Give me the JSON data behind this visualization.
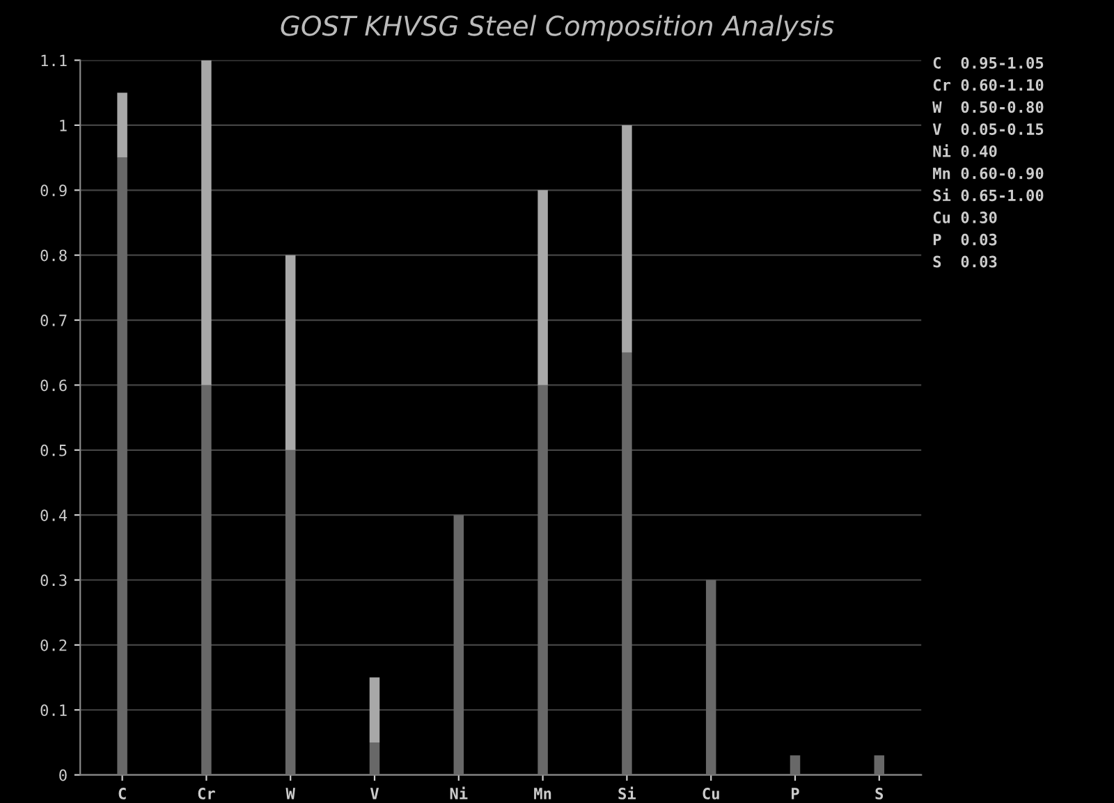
{
  "chart_data": {
    "type": "bar",
    "title": "GOST KHVSG Steel Composition Analysis",
    "stacked": true,
    "categories": [
      "C",
      "Cr",
      "W",
      "V",
      "Ni",
      "Mn",
      "Si",
      "Cu",
      "P",
      "S"
    ],
    "series": [
      {
        "color": "#686868",
        "values": [
          0.95,
          0.6,
          0.5,
          0.05,
          0.4,
          0.6,
          0.65,
          0.3,
          0.03,
          0.03
        ]
      },
      {
        "color": "#a8a8a8",
        "values": [
          0.1,
          0.5,
          0.3,
          0.1,
          0,
          0.3,
          0.35,
          0,
          0,
          0
        ]
      }
    ],
    "ylim": [
      0,
      1.1
    ],
    "yticks": [
      0,
      0.1,
      0.2,
      0.3,
      0.4,
      0.5,
      0.6,
      0.7,
      0.8,
      0.9,
      1,
      1.1
    ],
    "grid": "y",
    "legend": false,
    "annotations": [
      "C  0.95-1.05",
      "Cr 0.60-1.10",
      "W  0.50-0.80",
      "V  0.05-0.15",
      "Ni 0.40",
      "Mn 0.60-0.90",
      "Si 0.65-1.00",
      "Cu 0.30",
      "P  0.03",
      "S  0.03"
    ]
  }
}
